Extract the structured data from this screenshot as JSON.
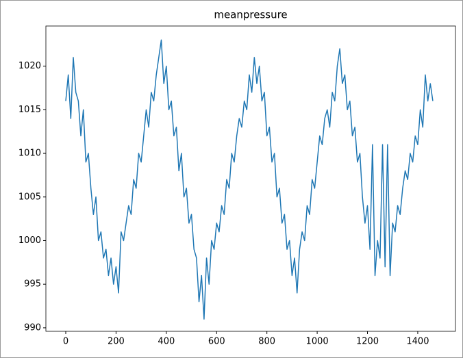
{
  "chart_data": {
    "type": "line",
    "title": "meanpressure",
    "x": [
      0,
      10,
      20,
      30,
      40,
      50,
      60,
      70,
      80,
      90,
      100,
      110,
      120,
      130,
      140,
      150,
      160,
      170,
      180,
      190,
      200,
      210,
      220,
      230,
      240,
      250,
      260,
      270,
      280,
      290,
      300,
      310,
      320,
      330,
      340,
      350,
      360,
      370,
      380,
      390,
      400,
      410,
      420,
      430,
      440,
      450,
      460,
      470,
      480,
      490,
      500,
      510,
      520,
      530,
      540,
      550,
      560,
      570,
      580,
      590,
      600,
      610,
      620,
      630,
      640,
      650,
      660,
      670,
      680,
      690,
      700,
      710,
      720,
      730,
      740,
      750,
      760,
      770,
      780,
      790,
      800,
      810,
      820,
      830,
      840,
      850,
      860,
      870,
      880,
      890,
      900,
      910,
      920,
      930,
      940,
      950,
      960,
      970,
      980,
      990,
      1000,
      1010,
      1020,
      1030,
      1040,
      1050,
      1060,
      1070,
      1080,
      1090,
      1100,
      1110,
      1120,
      1130,
      1140,
      1150,
      1160,
      1170,
      1180,
      1190,
      1200,
      1210,
      1220,
      1230,
      1240,
      1250,
      1260,
      1270,
      1280,
      1290,
      1300,
      1310,
      1320,
      1330,
      1340,
      1350,
      1360,
      1370,
      1380,
      1390,
      1400,
      1410,
      1420,
      1430,
      1440,
      1450,
      1460
    ],
    "series": [
      {
        "name": "meanpressure",
        "color": "#1f77b4",
        "values": [
          1016,
          1019,
          1014,
          1021,
          1017,
          1016,
          1012,
          1015,
          1009,
          1010,
          1006,
          1003,
          1005,
          1000,
          1001,
          998,
          999,
          996,
          998,
          995,
          997,
          994,
          1001,
          1000,
          1002,
          1004,
          1003,
          1007,
          1006,
          1010,
          1009,
          1012,
          1015,
          1013,
          1017,
          1016,
          1019,
          1021,
          1023,
          1018,
          1020,
          1015,
          1016,
          1012,
          1013,
          1008,
          1010,
          1005,
          1006,
          1002,
          1003,
          999,
          998,
          993,
          996,
          991,
          998,
          995,
          1000,
          999,
          1002,
          1001,
          1004,
          1003,
          1007,
          1006,
          1010,
          1009,
          1012,
          1014,
          1013,
          1016,
          1015,
          1019,
          1017,
          1021,
          1018,
          1020,
          1016,
          1017,
          1012,
          1013,
          1009,
          1010,
          1005,
          1006,
          1002,
          1003,
          999,
          1000,
          996,
          998,
          994,
          999,
          1001,
          1000,
          1004,
          1003,
          1007,
          1006,
          1009,
          1012,
          1011,
          1014,
          1015,
          1013,
          1017,
          1016,
          1020,
          1022,
          1018,
          1019,
          1015,
          1016,
          1012,
          1013,
          1009,
          1010,
          1005,
          1002,
          1004,
          999,
          1011,
          996,
          1000,
          998,
          1011,
          997,
          1011,
          996,
          1002,
          1001,
          1004,
          1003,
          1006,
          1008,
          1007,
          1010,
          1009,
          1012,
          1011,
          1015,
          1013,
          1019,
          1016,
          1018,
          1016
        ]
      }
    ],
    "xlim": [
      -79,
      1550
    ],
    "ylim": [
      989.6,
      1024.6
    ],
    "xticks": [
      0,
      200,
      400,
      600,
      800,
      1000,
      1200,
      1400
    ],
    "yticks": [
      990,
      995,
      1000,
      1005,
      1010,
      1015,
      1020
    ]
  }
}
